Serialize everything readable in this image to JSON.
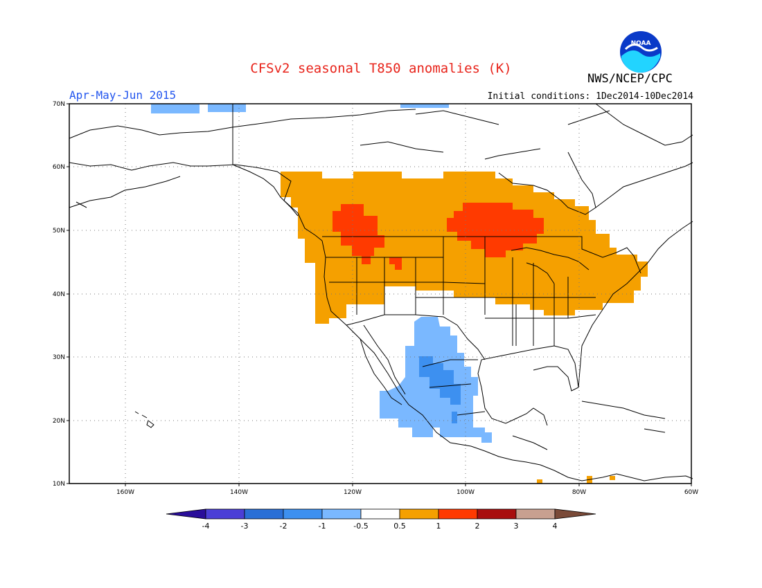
{
  "header": {
    "title": "CFSv2 seasonal T850 anomalies (K)",
    "agency": "NWS/NCEP/CPC",
    "logo_text": "NOAA",
    "season": "Apr-May-Jun 2015",
    "initial_conditions": "Initial conditions: 1Dec2014-10Dec2014"
  },
  "map": {
    "lat_labels": [
      "70N",
      "60N",
      "50N",
      "40N",
      "30N",
      "20N",
      "10N"
    ],
    "lon_labels": [
      "160W",
      "140W",
      "120W",
      "100W",
      "80W",
      "60W"
    ],
    "region_lon_range": [
      -170,
      -60
    ],
    "region_lat_range": [
      10,
      70
    ],
    "anomaly_regions": [
      {
        "category": "0.5 to 1",
        "description": "Pacific Northwest, Canadian prairies, northern/central US to Great Lakes and Northeast"
      },
      {
        "category": "1 to 2",
        "description": "Southern British Columbia / Washington-Idaho"
      },
      {
        "category": "1 to 2",
        "description": "Manitoba / Minnesota / western Lake Superior"
      },
      {
        "category": "-1 to -0.5",
        "description": "New Mexico, northern and western Mexico"
      },
      {
        "category": "-2 to -1",
        "description": "Northern Mexico Sierra Madre"
      }
    ],
    "colors": {
      "pos_0_5_1": "#f5a000",
      "pos_1_2": "#ff3a00",
      "neg_0_5_1": "#7ab8ff",
      "neg_1_2": "#3d90f0"
    }
  },
  "colorbar": {
    "labels": [
      "-4",
      "-3",
      "-2",
      "-1",
      "-0.5",
      "0.5",
      "1",
      "2",
      "3",
      "4"
    ],
    "colors": [
      "#2a0e9a",
      "#4b3fd6",
      "#2a6fd6",
      "#3d90f0",
      "#7ab8ff",
      "#ffffff",
      "#f5a000",
      "#ff3a00",
      "#a80e0e",
      "#c8a090",
      "#7a4a38"
    ]
  }
}
